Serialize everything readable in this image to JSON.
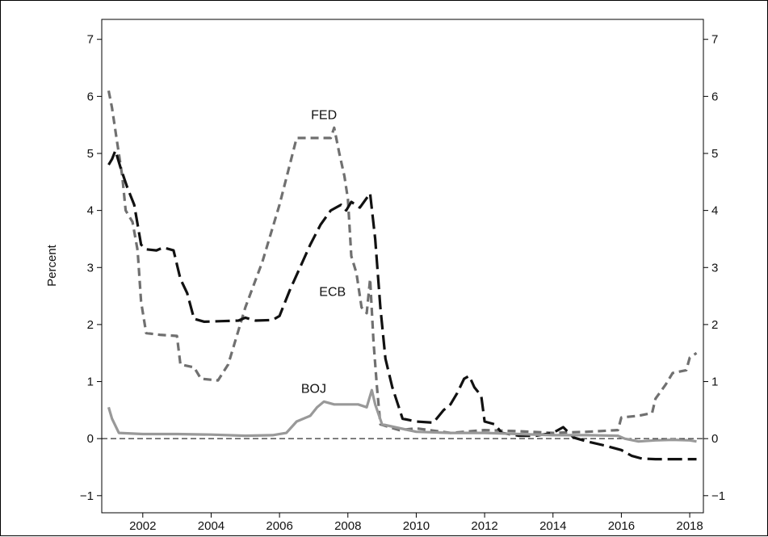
{
  "chart_data": {
    "type": "line",
    "title": "",
    "xlabel": "",
    "ylabel": "Percent",
    "xlim": [
      2000.8,
      2018.4
    ],
    "ylim": [
      -1.3,
      7.35
    ],
    "x_ticks": [
      2002,
      2004,
      2006,
      2008,
      2010,
      2012,
      2014,
      2016,
      2018
    ],
    "y_ticks": [
      -1,
      0,
      1,
      2,
      3,
      4,
      5,
      6,
      7
    ],
    "y_tick_labels": [
      "−1",
      "0",
      "1",
      "2",
      "3",
      "4",
      "5",
      "6",
      "7"
    ],
    "grid": false,
    "legend": "none",
    "zero_line": {
      "y": 0,
      "style": "dashed",
      "color": "#000000"
    },
    "series": [
      {
        "name": "FED",
        "color": "#707070",
        "dash": "short-dash",
        "label_at": [
          2007.3,
          5.6
        ],
        "points": [
          [
            2001.0,
            6.1
          ],
          [
            2001.1,
            5.8
          ],
          [
            2001.25,
            5.2
          ],
          [
            2001.4,
            4.6
          ],
          [
            2001.5,
            4.0
          ],
          [
            2001.7,
            3.8
          ],
          [
            2001.85,
            3.3
          ],
          [
            2001.95,
            2.4
          ],
          [
            2002.1,
            1.85
          ],
          [
            2002.5,
            1.82
          ],
          [
            2003.0,
            1.8
          ],
          [
            2003.1,
            1.3
          ],
          [
            2003.5,
            1.25
          ],
          [
            2003.7,
            1.05
          ],
          [
            2004.2,
            1.02
          ],
          [
            2004.5,
            1.3
          ],
          [
            2004.8,
            1.9
          ],
          [
            2005.0,
            2.3
          ],
          [
            2005.5,
            3.1
          ],
          [
            2006.0,
            4.1
          ],
          [
            2006.3,
            4.8
          ],
          [
            2006.5,
            5.27
          ],
          [
            2006.8,
            5.27
          ],
          [
            2007.2,
            5.27
          ],
          [
            2007.5,
            5.27
          ],
          [
            2007.6,
            5.45
          ],
          [
            2007.75,
            5.0
          ],
          [
            2007.9,
            4.6
          ],
          [
            2008.0,
            4.2
          ],
          [
            2008.1,
            3.2
          ],
          [
            2008.25,
            2.9
          ],
          [
            2008.4,
            2.3
          ],
          [
            2008.55,
            2.2
          ],
          [
            2008.65,
            2.8
          ],
          [
            2008.75,
            1.7
          ],
          [
            2008.85,
            0.9
          ],
          [
            2008.95,
            0.25
          ],
          [
            2009.5,
            0.15
          ],
          [
            2010.0,
            0.18
          ],
          [
            2011.0,
            0.1
          ],
          [
            2012.0,
            0.15
          ],
          [
            2013.0,
            0.13
          ],
          [
            2014.0,
            0.1
          ],
          [
            2015.0,
            0.12
          ],
          [
            2015.9,
            0.15
          ],
          [
            2016.0,
            0.37
          ],
          [
            2016.5,
            0.4
          ],
          [
            2016.9,
            0.45
          ],
          [
            2017.0,
            0.7
          ],
          [
            2017.3,
            0.95
          ],
          [
            2017.5,
            1.15
          ],
          [
            2017.9,
            1.2
          ],
          [
            2018.0,
            1.42
          ],
          [
            2018.2,
            1.5
          ]
        ]
      },
      {
        "name": "ECB",
        "color": "#111111",
        "dash": "long-dash",
        "label_at": [
          2007.55,
          2.5
        ],
        "points": [
          [
            2001.0,
            4.8
          ],
          [
            2001.1,
            4.9
          ],
          [
            2001.2,
            5.05
          ],
          [
            2001.35,
            4.75
          ],
          [
            2001.55,
            4.4
          ],
          [
            2001.75,
            4.1
          ],
          [
            2001.95,
            3.4
          ],
          [
            2002.1,
            3.32
          ],
          [
            2002.4,
            3.3
          ],
          [
            2002.6,
            3.35
          ],
          [
            2002.9,
            3.3
          ],
          [
            2003.1,
            2.8
          ],
          [
            2003.3,
            2.55
          ],
          [
            2003.5,
            2.1
          ],
          [
            2003.8,
            2.05
          ],
          [
            2004.3,
            2.06
          ],
          [
            2004.8,
            2.07
          ],
          [
            2005.0,
            2.12
          ],
          [
            2005.3,
            2.07
          ],
          [
            2005.8,
            2.08
          ],
          [
            2006.0,
            2.15
          ],
          [
            2006.3,
            2.6
          ],
          [
            2006.6,
            3.0
          ],
          [
            2006.9,
            3.4
          ],
          [
            2007.2,
            3.75
          ],
          [
            2007.5,
            4.0
          ],
          [
            2007.8,
            4.1
          ],
          [
            2007.95,
            4.0
          ],
          [
            2008.1,
            4.15
          ],
          [
            2008.35,
            4.05
          ],
          [
            2008.65,
            4.3
          ],
          [
            2008.8,
            3.5
          ],
          [
            2008.95,
            2.3
          ],
          [
            2009.1,
            1.4
          ],
          [
            2009.3,
            0.9
          ],
          [
            2009.6,
            0.35
          ],
          [
            2010.0,
            0.3
          ],
          [
            2010.5,
            0.28
          ],
          [
            2010.8,
            0.5
          ],
          [
            2011.0,
            0.6
          ],
          [
            2011.2,
            0.8
          ],
          [
            2011.4,
            1.05
          ],
          [
            2011.55,
            1.1
          ],
          [
            2011.7,
            0.9
          ],
          [
            2011.9,
            0.75
          ],
          [
            2012.0,
            0.3
          ],
          [
            2012.3,
            0.25
          ],
          [
            2012.5,
            0.1
          ],
          [
            2013.0,
            0.05
          ],
          [
            2013.5,
            0.05
          ],
          [
            2014.0,
            0.1
          ],
          [
            2014.3,
            0.2
          ],
          [
            2014.6,
            0.02
          ],
          [
            2015.0,
            -0.05
          ],
          [
            2015.5,
            -0.12
          ],
          [
            2016.0,
            -0.2
          ],
          [
            2016.3,
            -0.3
          ],
          [
            2016.6,
            -0.35
          ],
          [
            2017.0,
            -0.36
          ],
          [
            2017.5,
            -0.36
          ],
          [
            2018.0,
            -0.36
          ],
          [
            2018.2,
            -0.36
          ]
        ]
      },
      {
        "name": "BOJ",
        "color": "#999999",
        "dash": "solid",
        "label_at": [
          2007.0,
          0.8
        ],
        "points": [
          [
            2001.0,
            0.55
          ],
          [
            2001.1,
            0.35
          ],
          [
            2001.3,
            0.1
          ],
          [
            2002.0,
            0.08
          ],
          [
            2003.0,
            0.08
          ],
          [
            2004.0,
            0.07
          ],
          [
            2005.0,
            0.05
          ],
          [
            2005.8,
            0.06
          ],
          [
            2006.2,
            0.1
          ],
          [
            2006.5,
            0.3
          ],
          [
            2006.9,
            0.4
          ],
          [
            2007.1,
            0.55
          ],
          [
            2007.3,
            0.65
          ],
          [
            2007.6,
            0.6
          ],
          [
            2008.0,
            0.6
          ],
          [
            2008.3,
            0.6
          ],
          [
            2008.55,
            0.55
          ],
          [
            2008.7,
            0.85
          ],
          [
            2008.8,
            0.6
          ],
          [
            2009.0,
            0.25
          ],
          [
            2010.0,
            0.12
          ],
          [
            2011.0,
            0.1
          ],
          [
            2012.0,
            0.1
          ],
          [
            2013.0,
            0.08
          ],
          [
            2014.0,
            0.06
          ],
          [
            2015.0,
            0.06
          ],
          [
            2015.9,
            0.05
          ],
          [
            2016.1,
            0.0
          ],
          [
            2016.5,
            -0.05
          ],
          [
            2017.0,
            -0.03
          ],
          [
            2017.5,
            -0.02
          ],
          [
            2018.0,
            -0.03
          ],
          [
            2018.2,
            -0.05
          ]
        ]
      }
    ]
  }
}
